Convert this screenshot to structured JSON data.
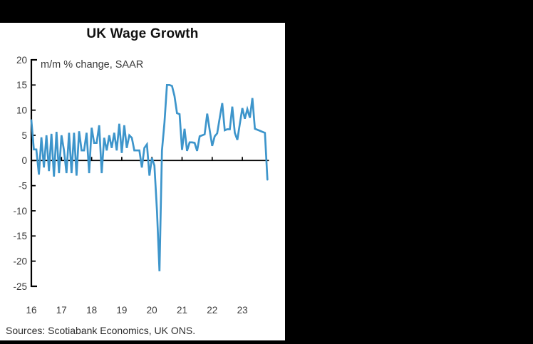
{
  "page": {
    "background_color": "#000000",
    "panel_color": "#ffffff"
  },
  "chart": {
    "title": "UK Wage Growth",
    "subtitle": "m/m % change, SAAR",
    "source": "Sources: Scotiabank Economics, UK ONS."
  },
  "chart_data": {
    "type": "line",
    "title": "UK Wage Growth",
    "subtitle": "m/m % change, SAAR",
    "source": "Sources: Scotiabank Economics, UK ONS.",
    "x_start_label": "Jan 2016",
    "x_end_label": "Nov 2023",
    "x_frequency": "monthly",
    "x_tick_labels": [
      "16",
      "17",
      "18",
      "19",
      "20",
      "21",
      "22",
      "23"
    ],
    "y_ticks": [
      20,
      15,
      10,
      5,
      0,
      -5,
      -10,
      -15,
      -20,
      -25
    ],
    "ylim": [
      -25,
      20
    ],
    "grid": false,
    "zero_line": true,
    "legend": "none",
    "colors": {
      "line": "#3d95cb",
      "axis": "#000000",
      "tick_text": "#3a3a3a"
    },
    "series": [
      {
        "name": "UK wage growth, m/m % change SAAR",
        "color": "#3d95cb",
        "values": [
          8.0,
          2.2,
          2.2,
          -2.8,
          4.6,
          -1.4,
          5.0,
          -2.1,
          5.3,
          -3.2,
          5.7,
          -2.5,
          5.0,
          2.0,
          -2.5,
          5.5,
          -2.5,
          5.5,
          -3.0,
          5.8,
          2.0,
          2.0,
          5.5,
          -2.5,
          6.5,
          3.5,
          3.5,
          7.0,
          -2.5,
          4.5,
          2.0,
          5.0,
          2.5,
          5.5,
          2.0,
          7.3,
          1.5,
          7.0,
          2.5,
          5.0,
          4.5,
          2.0,
          2.0,
          2.0,
          -1.4,
          2.5,
          3.2,
          -3.0,
          0.5,
          -1.0,
          -10.0,
          -22.0,
          2.0,
          7.5,
          15.0,
          15.0,
          14.8,
          12.8,
          9.4,
          9.2,
          2.1,
          6.3,
          1.9,
          3.6,
          3.6,
          3.5,
          1.9,
          4.8,
          5.0,
          5.2,
          9.3,
          6.0,
          2.9,
          4.8,
          5.4,
          8.5,
          11.4,
          6.0,
          6.2,
          6.2,
          10.7,
          5.5,
          4.1,
          7.3,
          10.4,
          8.3,
          10.2,
          8.5,
          12.4,
          6.3,
          6.1,
          5.9,
          5.7,
          5.5,
          -3.8
        ]
      }
    ]
  }
}
